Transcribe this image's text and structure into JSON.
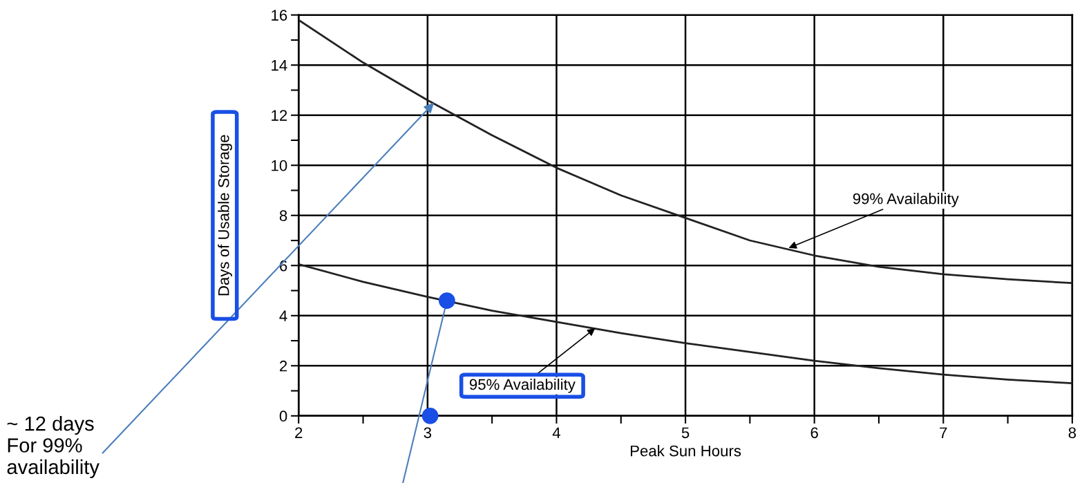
{
  "chart_data": {
    "type": "line",
    "xlabel": "Peak Sun Hours",
    "ylabel": "Days of Usable Storage",
    "series": [
      {
        "color": "#222222",
        "x": [
          2,
          2.5,
          3,
          3.5,
          4,
          4.5,
          5,
          5.5,
          6,
          6.5,
          7,
          7.5,
          8
        ],
        "values": [
          15.8,
          14.1,
          12.6,
          11.2,
          9.9,
          8.8,
          7.9,
          7.0,
          6.4,
          5.95,
          5.65,
          5.45,
          5.3
        ]
      },
      {
        "color": "#222222",
        "x": [
          2,
          2.5,
          3,
          3.5,
          4,
          4.5,
          5,
          5.5,
          6,
          6.5,
          7,
          7.5,
          8
        ],
        "values": [
          6.05,
          5.35,
          4.75,
          4.2,
          3.75,
          3.3,
          2.9,
          2.55,
          2.2,
          1.9,
          1.65,
          1.45,
          1.3
        ]
      },
      {
        "type": "scatter",
        "color": "#1a4fe6",
        "x": [
          3.15,
          3.02
        ],
        "values": [
          4.6,
          0
        ]
      }
    ],
    "annotations": [
      {
        "text": "99% Availability",
        "x": 5.8,
        "y": 6.7
      },
      {
        "text": "95% Availability",
        "x": 4.3,
        "y": 3.5
      },
      {
        "text": "~ 12 days\nFor 99%\navailability",
        "x": 3.05,
        "y": 12.5
      }
    ],
    "xlim": [
      2,
      8
    ],
    "ylim": [
      0,
      16
    ],
    "xticks": [
      2,
      3,
      4,
      5,
      6,
      7,
      8
    ],
    "yticks": [
      0,
      2,
      4,
      6,
      8,
      10,
      12,
      14,
      16
    ],
    "grid": true,
    "line_style": "solid"
  }
}
